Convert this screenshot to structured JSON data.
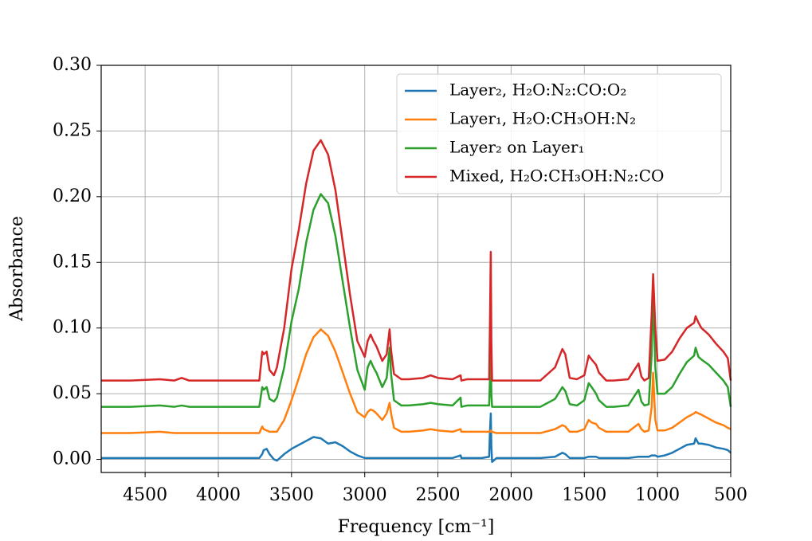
{
  "chart_data": {
    "type": "line",
    "xlabel": "Frequency [cm⁻¹]",
    "ylabel": "Absorbance",
    "xlim": [
      4800,
      500
    ],
    "ylim": [
      -0.01,
      0.3
    ],
    "xticks": [
      4500,
      4000,
      3500,
      3000,
      2500,
      2000,
      1500,
      1000,
      500
    ],
    "yticks": [
      {
        "value": 0,
        "label": "0.00"
      },
      0.05,
      {
        "value": 0.1,
        "label": "0.10"
      },
      0.15,
      {
        "value": 0.2,
        "label": "0.20"
      },
      0.25,
      {
        "value": 0.3,
        "label": "0.30"
      }
    ],
    "grid": true,
    "legend": "upper right",
    "x": [
      4800,
      4600,
      4400,
      4300,
      4250,
      4200,
      4000,
      3800,
      3720,
      3700,
      3690,
      3670,
      3650,
      3620,
      3600,
      3550,
      3500,
      3450,
      3400,
      3350,
      3300,
      3250,
      3200,
      3150,
      3100,
      3050,
      3000,
      2980,
      2960,
      2940,
      2920,
      2880,
      2850,
      2830,
      2820,
      2800,
      2750,
      2700,
      2600,
      2550,
      2500,
      2400,
      2345,
      2340,
      2300,
      2200,
      2150,
      2145,
      2139,
      2135,
      2130,
      2100,
      2000,
      1900,
      1800,
      1700,
      1650,
      1630,
      1600,
      1550,
      1500,
      1470,
      1450,
      1420,
      1400,
      1350,
      1300,
      1200,
      1130,
      1110,
      1090,
      1060,
      1040,
      1030,
      1015,
      1000,
      950,
      900,
      850,
      800,
      750,
      740,
      720,
      700,
      650,
      600,
      550,
      520,
      500
    ],
    "series": [
      {
        "name": "Layer₂, H₂O:N₂:CO:O₂",
        "color": "#1f77b4",
        "values": [
          0.001,
          0.001,
          0.001,
          0.001,
          0.001,
          0.001,
          0.001,
          0.001,
          0.001,
          0.004,
          0.007,
          0.008,
          0.004,
          0,
          -0.001,
          0.004,
          0.008,
          0.011,
          0.014,
          0.017,
          0.016,
          0.012,
          0.013,
          0.01,
          0.006,
          0.003,
          0.001,
          0.001,
          0.001,
          0.001,
          0.001,
          0.001,
          0.001,
          0.001,
          0.001,
          0.001,
          0.001,
          0.001,
          0.001,
          0.001,
          0.001,
          0.001,
          0.003,
          0.001,
          0.001,
          0.001,
          0.002,
          0.02,
          0.035,
          0.01,
          -0.002,
          0.001,
          0.001,
          0.001,
          0.001,
          0.002,
          0.005,
          0.004,
          0.001,
          0.001,
          0.001,
          0.002,
          0.002,
          0.002,
          0.001,
          0.001,
          0.001,
          0.001,
          0.002,
          0.002,
          0.002,
          0.002,
          0.003,
          0.003,
          0.003,
          0.002,
          0.003,
          0.005,
          0.008,
          0.011,
          0.012,
          0.016,
          0.012,
          0.012,
          0.011,
          0.009,
          0.008,
          0.007,
          0.005
        ]
      },
      {
        "name": "Layer₁, H₂O:CH₃OH:N₂",
        "color": "#ff7f0e",
        "values": [
          0.02,
          0.02,
          0.021,
          0.02,
          0.02,
          0.02,
          0.02,
          0.02,
          0.02,
          0.025,
          0.023,
          0.022,
          0.021,
          0.021,
          0.021,
          0.03,
          0.045,
          0.062,
          0.08,
          0.093,
          0.099,
          0.094,
          0.082,
          0.066,
          0.05,
          0.036,
          0.032,
          0.036,
          0.038,
          0.037,
          0.035,
          0.03,
          0.035,
          0.043,
          0.035,
          0.024,
          0.021,
          0.021,
          0.022,
          0.023,
          0.022,
          0.021,
          0.023,
          0.021,
          0.021,
          0.021,
          0.021,
          0.021,
          0.022,
          0.021,
          0.021,
          0.02,
          0.02,
          0.02,
          0.02,
          0.023,
          0.026,
          0.025,
          0.021,
          0.021,
          0.023,
          0.03,
          0.028,
          0.027,
          0.024,
          0.021,
          0.021,
          0.021,
          0.027,
          0.023,
          0.021,
          0.022,
          0.04,
          0.066,
          0.03,
          0.022,
          0.022,
          0.024,
          0.028,
          0.032,
          0.035,
          0.036,
          0.035,
          0.034,
          0.031,
          0.028,
          0.026,
          0.024,
          0.023
        ]
      },
      {
        "name": "Layer₂ on Layer₁",
        "color": "#2ca02c",
        "values": [
          0.04,
          0.04,
          0.041,
          0.04,
          0.041,
          0.04,
          0.04,
          0.04,
          0.04,
          0.055,
          0.053,
          0.055,
          0.046,
          0.044,
          0.047,
          0.07,
          0.105,
          0.13,
          0.165,
          0.19,
          0.202,
          0.195,
          0.17,
          0.135,
          0.1,
          0.068,
          0.053,
          0.07,
          0.075,
          0.07,
          0.066,
          0.055,
          0.062,
          0.085,
          0.065,
          0.045,
          0.041,
          0.041,
          0.042,
          0.043,
          0.042,
          0.041,
          0.047,
          0.04,
          0.041,
          0.041,
          0.041,
          0.06,
          0.09,
          0.05,
          0.04,
          0.04,
          0.04,
          0.04,
          0.04,
          0.046,
          0.055,
          0.052,
          0.042,
          0.041,
          0.045,
          0.058,
          0.055,
          0.05,
          0.045,
          0.04,
          0.04,
          0.041,
          0.053,
          0.044,
          0.041,
          0.042,
          0.08,
          0.128,
          0.07,
          0.05,
          0.05,
          0.055,
          0.065,
          0.074,
          0.079,
          0.085,
          0.078,
          0.076,
          0.072,
          0.066,
          0.06,
          0.055,
          0.04
        ]
      },
      {
        "name": "Mixed, H₂O:CH₃OH:N₂:CO",
        "color": "#d62728",
        "values": [
          0.06,
          0.06,
          0.061,
          0.06,
          0.062,
          0.06,
          0.06,
          0.06,
          0.06,
          0.082,
          0.08,
          0.082,
          0.068,
          0.064,
          0.07,
          0.1,
          0.145,
          0.175,
          0.21,
          0.235,
          0.243,
          0.232,
          0.205,
          0.165,
          0.125,
          0.09,
          0.078,
          0.09,
          0.095,
          0.09,
          0.086,
          0.075,
          0.08,
          0.099,
          0.083,
          0.065,
          0.061,
          0.061,
          0.062,
          0.064,
          0.062,
          0.061,
          0.064,
          0.06,
          0.061,
          0.061,
          0.061,
          0.1,
          0.158,
          0.09,
          0.06,
          0.06,
          0.06,
          0.06,
          0.06,
          0.07,
          0.084,
          0.08,
          0.062,
          0.061,
          0.064,
          0.079,
          0.076,
          0.072,
          0.066,
          0.06,
          0.06,
          0.061,
          0.073,
          0.063,
          0.06,
          0.062,
          0.11,
          0.141,
          0.1,
          0.075,
          0.076,
          0.082,
          0.092,
          0.1,
          0.104,
          0.109,
          0.104,
          0.1,
          0.095,
          0.088,
          0.082,
          0.077,
          0.06
        ]
      }
    ]
  }
}
